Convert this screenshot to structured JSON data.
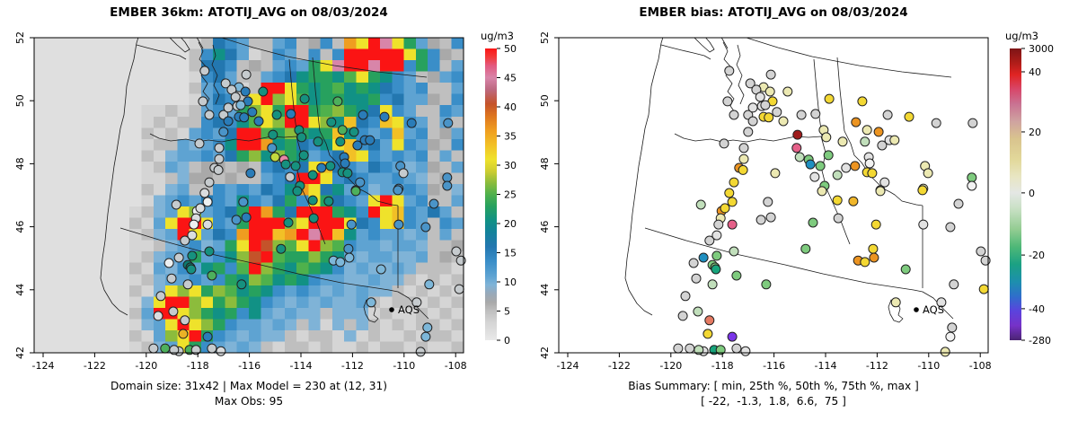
{
  "page": {
    "background": "#ffffff"
  },
  "axes": {
    "x_ticks": [
      "-124",
      "-122",
      "-120",
      "-118",
      "-116",
      "-114",
      "-112",
      "-110",
      "-108"
    ],
    "y_ticks": [
      "52",
      "50",
      "48",
      "46",
      "44",
      "42"
    ]
  },
  "left_panel": {
    "title": "EMBER 36km: ATOTIJ_AVG on 08/03/2024",
    "caption_line1": "Domain size: 31x42 | Max Model = 230 at (12, 31)",
    "caption_line2": "Max Obs: 95",
    "aqs_label": "AQS",
    "colorbar": {
      "label": "ug/m3",
      "ticks": [
        0,
        5,
        10,
        15,
        20,
        25,
        30,
        35,
        40,
        45,
        50
      ]
    }
  },
  "right_panel": {
    "title": "EMBER bias: ATOTIJ_AVG on 08/03/2024",
    "caption_line1": "Bias Summary: [ min, 25th %, 50th %, 75th %, max ]",
    "caption_line2": "[ -22,  -1.3,  1.8,  6.6,  75 ]",
    "aqs_label": "AQS",
    "colorbar": {
      "label": "ug/m3",
      "ticks": [
        {
          "label": "3000",
          "f": 0
        },
        {
          "label": "40",
          "f": 0.08
        },
        {
          "label": "20",
          "f": 0.286
        },
        {
          "label": "0",
          "f": 0.495
        },
        {
          "label": "-20",
          "f": 0.708
        },
        {
          "label": "-40",
          "f": 0.892
        },
        {
          "label": "-280",
          "f": 1
        }
      ],
      "gradient": [
        [
          0,
          "#7d1416"
        ],
        [
          0.05,
          "#b01d19"
        ],
        [
          0.09,
          "#e02423"
        ],
        [
          0.14,
          "#d8476a"
        ],
        [
          0.19,
          "#c97292"
        ],
        [
          0.25,
          "#cfa3a0"
        ],
        [
          0.31,
          "#d9c48e"
        ],
        [
          0.38,
          "#e2d89a"
        ],
        [
          0.44,
          "#e8e6c3"
        ],
        [
          0.495,
          "#e4e7e4"
        ],
        [
          0.55,
          "#c8e0c4"
        ],
        [
          0.62,
          "#93cc92"
        ],
        [
          0.68,
          "#4eb877"
        ],
        [
          0.74,
          "#1ba183"
        ],
        [
          0.8,
          "#1d8fae"
        ],
        [
          0.85,
          "#2f6ecb"
        ],
        [
          0.9,
          "#5b43dd"
        ],
        [
          0.95,
          "#7632c8"
        ],
        [
          1,
          "#4a2472"
        ]
      ]
    }
  },
  "colormap_stops": [
    [
      0,
      "#e9e9e9"
    ],
    [
      3,
      "#d5d5d5"
    ],
    [
      5,
      "#bfbfbf"
    ],
    [
      6.5,
      "#a9a9a9"
    ],
    [
      8,
      "#98a9b9"
    ],
    [
      9.5,
      "#7fb3d7"
    ],
    [
      11,
      "#5ea3d2"
    ],
    [
      13.5,
      "#3a8ec8"
    ],
    [
      16,
      "#2377b0"
    ],
    [
      18.5,
      "#13829b"
    ],
    [
      20.5,
      "#119185"
    ],
    [
      23,
      "#27a15e"
    ],
    [
      25,
      "#4fb14c"
    ],
    [
      27,
      "#8cbc3c"
    ],
    [
      29,
      "#cecd31"
    ],
    [
      31,
      "#efe22b"
    ],
    [
      33.5,
      "#f2c026"
    ],
    [
      36,
      "#ef9d20"
    ],
    [
      38.5,
      "#dd741f"
    ],
    [
      40.5,
      "#c4532a"
    ],
    [
      43,
      "#bd6981"
    ],
    [
      45,
      "#d885a9"
    ],
    [
      47,
      "#e25b81"
    ],
    [
      48.5,
      "#f23a3a"
    ],
    [
      50,
      "#fb1414"
    ]
  ],
  "site_palettes": {
    "left": {
      "g": "#c6cbce",
      "pg": "#dadddf",
      "w": "#edf0f1",
      "lb": "#7db7d9",
      "sb": "#4a94c8",
      "b": "#2a7cb8",
      "t": "#16917f",
      "dt": "#0e7a70",
      "gr": "#4db05c",
      "yg": "#c4d93d",
      "y": "#e9e23a",
      "go": "#eab226",
      "pk": "#e887a6"
    },
    "right": {
      "w": "#f2f2f2",
      "pg": "#e2e2e2",
      "g": "#d3d3d3",
      "py": "#ece9b2",
      "y": "#f3d833",
      "go": "#f0b62a",
      "o": "#ec9421",
      "dr": "#9e1b1b",
      "pk": "#e56089",
      "sa": "#e57a62",
      "pgr": "#c1dfbb",
      "gr": "#7ecb7e",
      "t": "#17a47c",
      "bt": "#1f8fc0",
      "pu": "#7a35e8"
    }
  },
  "chart_data": [
    {
      "type": "heatmap",
      "title": "EMBER 36km: ATOTIJ_AVG on 08/03/2024",
      "units": "ug/m3",
      "xlabel_ticks": [
        -124,
        -122,
        -120,
        -118,
        -116,
        -114,
        -112,
        -110,
        -108
      ],
      "ylabel_ticks": [
        52,
        50,
        48,
        46,
        44,
        42
      ],
      "value_range": [
        0,
        50
      ],
      "domain_size": "31x42",
      "max_model": 230,
      "max_model_at": "(12, 31)",
      "max_obs": 95,
      "grid_codes": {
        ".": 1.5,
        "a": 3,
        "b": 5,
        "c": 6.5,
        "1": 9.5,
        "2": 11,
        "3": 13.5,
        "4": 16,
        "5": 20.5,
        "6": 23,
        "7": 25,
        "8": 27,
        "9": 31,
        "g": 33.5,
        "o": 36,
        "O": 40.5,
        "m": 43,
        "p": 45,
        "r": 50
      },
      "grid_rows": [
        ".............ab432bb23bc3bo9rp962cb3",
        ".............b3542ab32b3b3rrrrr963cb",
        ".............b443bcb23269prrprr363b2",
        ".............a342bb2345665796532bc23",
        ".............b232abrr965675654323bb2",
        ".............a243b9r8975665563422cb3",
        ".........aabab2326896rr678654932bb32",
        ".........ababb3435798rr985g43g932b2b",
        ".........baba2324rr768656g5323g23bc2",
        ".........abb21235rro564359g342932cb3",
        ".........ba122324685865234g932323b2b",
        ".........ab21bccbcb34349g43243212cb2",
        ".........aab1ccbcbb234rr934322321bcb",
        ".........ba12bb3232435o9452312232cb1",
        ".........a1232432532463964329r923bb2",
        "........ab12982346ro64rrr653r9g3242b",
        "........ba29rr9326rrr89rrr9439g32b32",
        "........ab12r9243orrgorprg5232212b2b",
        "........aab1231269rO879r873221221bbc",
        "........ab12262358Or7668652122112bcb",
        "........ba21325637r8657653121121bbba",
        "........ab122323658756532211211babab",
        "........ba19896875653232121211bababa",
        "........a19rr896865321212112babbabab",
        "........b2rr986563521211b111abaababa",
        "........a129r986322121b1a1b1bababbab",
        "........ba289r6321211babba1abaababba",
        "........ab129632121babbabaababbabaab"
      ]
    },
    {
      "type": "scatter",
      "title": "EMBER bias: ATOTIJ_AVG on 08/03/2024",
      "units": "ug/m3",
      "colorbar_ticks": [
        3000,
        40,
        20,
        0,
        -20,
        -40,
        -280
      ],
      "bias_summary": {
        "min": -22,
        "p25": -1.3,
        "p50": 1.8,
        "p75": 6.6,
        "max": 75
      },
      "sites_note": "fx,fy = fractional position in plot box; l/r = fill key for left and right map",
      "sites": [
        [
          0.397,
          0.105,
          "g",
          "g"
        ],
        [
          0.446,
          0.145,
          "g",
          "g"
        ],
        [
          0.477,
          0.157,
          "lb",
          "py"
        ],
        [
          0.494,
          0.117,
          "g",
          "g"
        ],
        [
          0.492,
          0.171,
          "b",
          "py"
        ],
        [
          0.498,
          0.202,
          "b",
          "y"
        ],
        [
          0.473,
          0.217,
          "g",
          "pg"
        ],
        [
          0.441,
          0.245,
          "g",
          "g"
        ],
        [
          0.452,
          0.265,
          "b",
          "g"
        ],
        [
          0.477,
          0.251,
          "b",
          "y"
        ],
        [
          0.489,
          0.253,
          "b",
          "y"
        ],
        [
          0.393,
          0.202,
          "g",
          "g"
        ],
        [
          0.408,
          0.245,
          "g",
          "g"
        ],
        [
          0.441,
          0.299,
          "sb",
          "g"
        ],
        [
          0.431,
          0.35,
          "g",
          "g"
        ],
        [
          0.431,
          0.385,
          "g",
          "py"
        ],
        [
          0.42,
          0.413,
          "g",
          "o"
        ],
        [
          0.429,
          0.42,
          "g",
          "y"
        ],
        [
          0.408,
          0.459,
          "g",
          "y"
        ],
        [
          0.397,
          0.493,
          "pg",
          "y"
        ],
        [
          0.504,
          0.43,
          "b",
          "py"
        ],
        [
          0.533,
          0.171,
          "t",
          "py"
        ],
        [
          0.63,
          0.194,
          "t",
          "y"
        ],
        [
          0.707,
          0.202,
          "gr",
          "y"
        ],
        [
          0.565,
          0.245,
          "t",
          "g"
        ],
        [
          0.598,
          0.242,
          "b",
          "g"
        ],
        [
          0.766,
          0.245,
          "b",
          "g"
        ],
        [
          0.816,
          0.251,
          "b",
          "y"
        ],
        [
          0.879,
          0.271,
          "b",
          "g"
        ],
        [
          0.964,
          0.271,
          "sb",
          "g"
        ],
        [
          0.692,
          0.268,
          "t",
          "o"
        ],
        [
          0.718,
          0.293,
          "gr",
          "py"
        ],
        [
          0.745,
          0.299,
          "t",
          "o"
        ],
        [
          0.617,
          0.293,
          "t",
          "py"
        ],
        [
          0.623,
          0.316,
          "t",
          "py"
        ],
        [
          0.556,
          0.308,
          "t",
          "dr"
        ],
        [
          0.554,
          0.35,
          "sb",
          "pk"
        ],
        [
          0.661,
          0.33,
          "t",
          "py"
        ],
        [
          0.77,
          0.325,
          "b",
          "pg"
        ],
        [
          0.782,
          0.325,
          "b",
          "py"
        ],
        [
          0.753,
          0.342,
          "b",
          "g"
        ],
        [
          0.713,
          0.33,
          "t",
          "pgr"
        ],
        [
          0.561,
          0.379,
          "yg",
          "pgr"
        ],
        [
          0.582,
          0.387,
          "pk",
          "gr"
        ],
        [
          0.586,
          0.402,
          "t",
          "bt"
        ],
        [
          0.609,
          0.407,
          "t",
          "gr"
        ],
        [
          0.628,
          0.373,
          "t",
          "gr"
        ],
        [
          0.669,
          0.413,
          "b",
          "pg"
        ],
        [
          0.69,
          0.407,
          "t",
          "o"
        ],
        [
          0.722,
          0.379,
          "b",
          "pg"
        ],
        [
          0.724,
          0.399,
          "b",
          "w"
        ],
        [
          0.718,
          0.427,
          "t",
          "y"
        ],
        [
          0.73,
          0.43,
          "t",
          "y"
        ],
        [
          0.649,
          0.436,
          "t",
          "pgr"
        ],
        [
          0.596,
          0.442,
          "g",
          "pg"
        ],
        [
          0.619,
          0.47,
          "t",
          "gr"
        ],
        [
          0.759,
          0.459,
          "sb",
          "pg"
        ],
        [
          0.749,
          0.484,
          "sb",
          "pg"
        ],
        [
          0.853,
          0.407,
          "sb",
          "py"
        ],
        [
          0.86,
          0.43,
          "g",
          "py"
        ],
        [
          0.962,
          0.444,
          "sb",
          "gr"
        ],
        [
          0.962,
          0.47,
          "sb",
          "w"
        ],
        [
          0.849,
          0.479,
          "sb",
          "py"
        ],
        [
          0.404,
          0.521,
          "w",
          "y"
        ],
        [
          0.379,
          0.55,
          "w",
          "o"
        ],
        [
          0.387,
          0.541,
          "pg",
          "y"
        ],
        [
          0.377,
          0.573,
          "pg",
          "py"
        ],
        [
          0.404,
          0.593,
          "pg",
          "pk"
        ],
        [
          0.331,
          0.53,
          "g",
          "pgr"
        ],
        [
          0.487,
          0.521,
          "sb",
          "g"
        ],
        [
          0.471,
          0.578,
          "sb",
          "g"
        ],
        [
          0.494,
          0.57,
          "b",
          "g"
        ],
        [
          0.337,
          0.698,
          "g",
          "bt"
        ],
        [
          0.368,
          0.692,
          "t",
          "gr"
        ],
        [
          0.358,
          0.721,
          "dt",
          "gr"
        ],
        [
          0.364,
          0.729,
          "dt",
          "gr"
        ],
        [
          0.366,
          0.735,
          "t",
          "t"
        ],
        [
          0.408,
          0.678,
          "t",
          "pgr"
        ],
        [
          0.314,
          0.715,
          "w",
          "g"
        ],
        [
          0.414,
          0.755,
          "gr",
          "gr"
        ],
        [
          0.358,
          0.783,
          "g",
          "pgr"
        ],
        [
          0.483,
          0.783,
          "t",
          "gr"
        ],
        [
          0.295,
          0.82,
          "g",
          "g"
        ],
        [
          0.324,
          0.869,
          "g",
          "pgr"
        ],
        [
          0.351,
          0.897,
          "g",
          "sa"
        ],
        [
          0.347,
          0.94,
          "go",
          "y"
        ],
        [
          0.404,
          0.949,
          "b",
          "pu"
        ],
        [
          0.362,
          0.991,
          "gr",
          "t"
        ],
        [
          0.377,
          0.991,
          "g",
          "gr"
        ],
        [
          0.278,
          0.986,
          "g",
          "g"
        ],
        [
          0.337,
          0.995,
          "g",
          "pg"
        ],
        [
          0.414,
          0.986,
          "g",
          "g"
        ],
        [
          0.435,
          0.995,
          "pg",
          "pg"
        ],
        [
          0.613,
          0.487,
          "t",
          "py"
        ],
        [
          0.749,
          0.487,
          "gr",
          "py"
        ],
        [
          0.847,
          0.484,
          "sb",
          "y"
        ],
        [
          0.649,
          0.516,
          "t",
          "y"
        ],
        [
          0.686,
          0.519,
          "t",
          "go"
        ],
        [
          0.931,
          0.527,
          "sb",
          "g"
        ],
        [
          0.592,
          0.587,
          "t",
          "gr"
        ],
        [
          0.651,
          0.573,
          "t",
          "g"
        ],
        [
          0.739,
          0.593,
          "sb",
          "y"
        ],
        [
          0.849,
          0.593,
          "sb",
          "pg"
        ],
        [
          0.912,
          0.601,
          "sb",
          "g"
        ],
        [
          0.575,
          0.67,
          "t",
          "gr"
        ],
        [
          0.732,
          0.67,
          "sb",
          "y"
        ],
        [
          0.697,
          0.707,
          "lb",
          "o"
        ],
        [
          0.713,
          0.712,
          "lb",
          "y"
        ],
        [
          0.734,
          0.698,
          "lb",
          "o"
        ],
        [
          0.808,
          0.735,
          "lb",
          "gr"
        ],
        [
          0.983,
          0.678,
          "g",
          "g"
        ],
        [
          0.994,
          0.707,
          "g",
          "g"
        ],
        [
          0.92,
          0.783,
          "lb",
          "g"
        ],
        [
          0.99,
          0.798,
          "g",
          "y"
        ],
        [
          0.785,
          0.84,
          "lb",
          "py"
        ],
        [
          0.891,
          0.84,
          "g",
          "pg"
        ],
        [
          0.916,
          0.92,
          "lb",
          "g"
        ],
        [
          0.912,
          0.949,
          "lb",
          "w"
        ],
        [
          0.9,
          0.997,
          "g",
          "py"
        ],
        [
          0.46,
          0.165,
          "g",
          "g"
        ],
        [
          0.469,
          0.188,
          "g",
          "pg"
        ],
        [
          0.481,
          0.214,
          "lb",
          "g"
        ],
        [
          0.452,
          0.222,
          "g",
          "pg"
        ],
        [
          0.508,
          0.236,
          "b",
          "g"
        ],
        [
          0.523,
          0.265,
          "b",
          "py"
        ],
        [
          0.385,
          0.336,
          "g",
          "g"
        ],
        [
          0.372,
          0.593,
          "w",
          "g"
        ],
        [
          0.368,
          0.627,
          "pg",
          "pg"
        ],
        [
          0.351,
          0.644,
          "g",
          "g"
        ],
        [
          0.32,
          0.764,
          "g",
          "g"
        ],
        [
          0.289,
          0.883,
          "pg",
          "g"
        ],
        [
          0.305,
          0.986,
          "gr",
          "g"
        ],
        [
          0.326,
          0.991,
          "g",
          "pgr"
        ]
      ]
    }
  ]
}
